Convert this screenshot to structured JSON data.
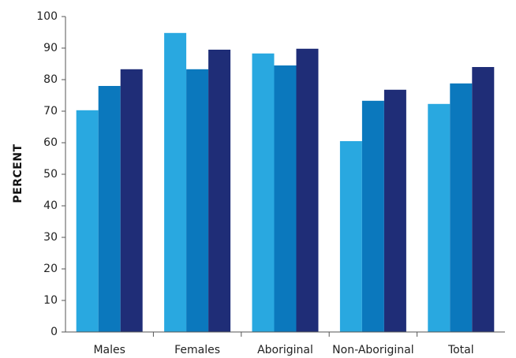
{
  "chart_data": {
    "type": "bar",
    "title": "",
    "xlabel": "",
    "ylabel": "PERCENT",
    "ylim": [
      0,
      100
    ],
    "yticks": [
      0,
      10,
      20,
      30,
      40,
      50,
      60,
      70,
      80,
      90,
      100
    ],
    "grid": false,
    "legend": "none",
    "categories": [
      "Males",
      "Females",
      "Aboriginal",
      "Non-Aboriginal",
      "Total"
    ],
    "series": [
      {
        "color": "#29a8e0",
        "values": [
          70.3,
          94.8,
          88.3,
          60.5,
          72.3
        ]
      },
      {
        "color": "#0b78bd",
        "values": [
          78.0,
          83.3,
          84.5,
          73.3,
          78.8
        ]
      },
      {
        "color": "#1f2d77",
        "values": [
          83.3,
          89.5,
          89.8,
          76.8,
          84.0
        ]
      }
    ]
  }
}
